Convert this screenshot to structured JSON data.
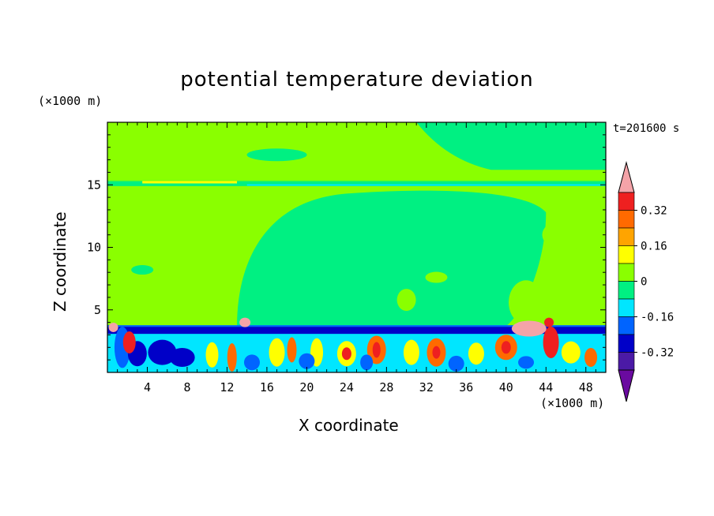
{
  "chart_data": {
    "type": "heatmap",
    "title": "potential temperature deviation",
    "xlabel": "X coordinate",
    "ylabel": "Z coordinate",
    "x_unit": "(×1000 m)",
    "y_unit": "(×1000 m)",
    "time_label": "t=201600 s",
    "xlim": [
      0,
      50
    ],
    "ylim": [
      0,
      20
    ],
    "x_ticks": [
      4,
      8,
      12,
      16,
      20,
      24,
      28,
      32,
      36,
      40,
      44,
      48
    ],
    "y_ticks": [
      5,
      10,
      15
    ],
    "colorbar": {
      "levels": [
        -0.4,
        -0.32,
        -0.24,
        -0.16,
        -0.08,
        0,
        0.08,
        0.16,
        0.24,
        0.32,
        0.4
      ],
      "tick_labels": [
        "0.32",
        "0.16",
        "0",
        "-0.16",
        "-0.32"
      ],
      "colors_top_to_bottom": [
        "#f4a3a8",
        "#ee2020",
        "#ff6a00",
        "#ffa400",
        "#ffff00",
        "#8aff00",
        "#00f082",
        "#00e6ff",
        "#0064ff",
        "#0000c8",
        "#4b1aa6",
        "#6a0aa0"
      ]
    },
    "background_level": "0 to 0.08",
    "features": [
      {
        "label": "layer 0 to 0.08",
        "x": [
          0,
          50
        ],
        "z": [
          15.3,
          20
        ]
      },
      {
        "label": "layer -0.08 to 0",
        "x": [
          0,
          50
        ],
        "z": [
          3.6,
          15.3
        ]
      },
      {
        "label": "thin warm band",
        "x": [
          4,
          14
        ],
        "z": [
          15.2,
          15.3
        ]
      },
      {
        "label": "cold inversion band",
        "x": [
          0,
          50
        ],
        "z": [
          3.2,
          3.6
        ]
      },
      {
        "label": "turbulent boundary layer",
        "x": [
          0,
          50
        ],
        "z": [
          0,
          3.2
        ]
      },
      {
        "label": "warm patch",
        "x": [
          13,
          14.5
        ],
        "z": [
          3.5,
          4.6
        ]
      },
      {
        "label": "warm patch",
        "x": [
          40,
          45
        ],
        "z": [
          2.8,
          4.2
        ]
      }
    ]
  }
}
